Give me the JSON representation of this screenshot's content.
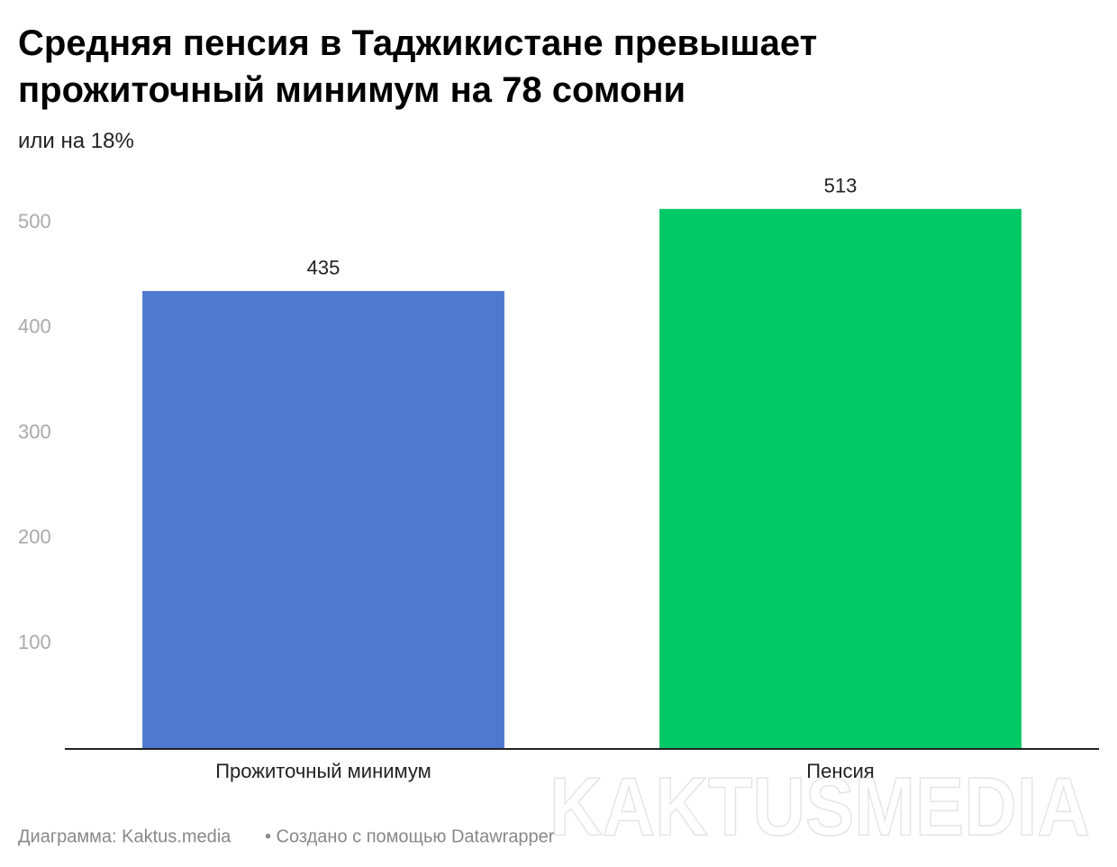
{
  "chart_data": {
    "type": "bar",
    "title": "Средняя пенсия в Таджикистане превышает прожиточный минимум на 78 сомони",
    "subtitle": "или на 18%",
    "categories": [
      "Прожиточный минимум",
      "Пенсия"
    ],
    "values": [
      435,
      513
    ],
    "colors": [
      "#4f78cf",
      "#00c864"
    ],
    "ylim": [
      0,
      500
    ],
    "yticks": [
      100,
      200,
      300,
      400,
      500
    ],
    "grid": false,
    "source": "Диаграмма: Kaktus.media",
    "credit": "• Создано с помощью Datawrapper",
    "watermark": "KAKTUSMEDIA"
  }
}
